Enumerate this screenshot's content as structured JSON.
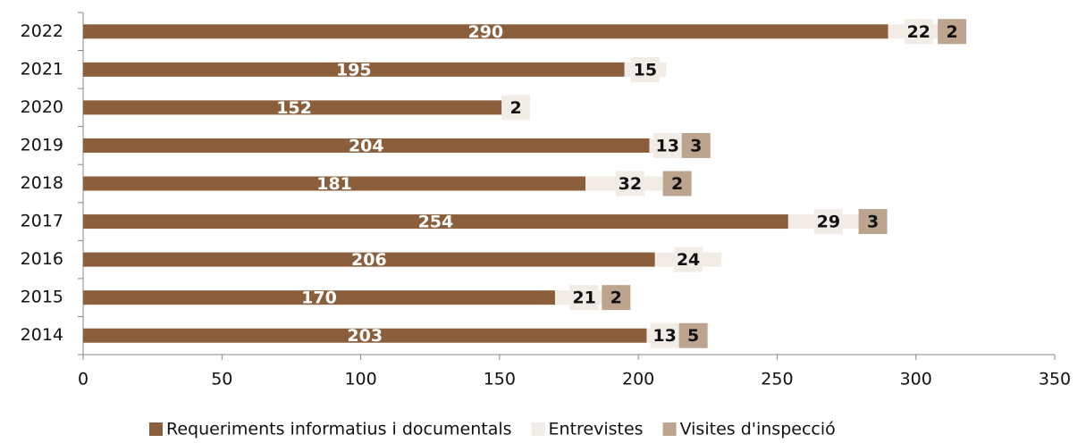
{
  "chart_data": {
    "type": "stacked-bar-horizontal",
    "categories": [
      "2022",
      "2021",
      "2020",
      "2019",
      "2018",
      "2017",
      "2016",
      "2015",
      "2014"
    ],
    "series": [
      {
        "name": "Requeriments informatius i documentals",
        "color": "#8b5e3c",
        "values": [
          290,
          195,
          152,
          204,
          181,
          254,
          206,
          170,
          203
        ]
      },
      {
        "name": "Entrevistes",
        "color": "#f2ece7",
        "values": [
          22,
          15,
          2,
          13,
          32,
          29,
          24,
          21,
          13
        ]
      },
      {
        "name": "Visites d'inspecció",
        "color": "#bda48e",
        "values": [
          2,
          null,
          null,
          3,
          2,
          3,
          null,
          2,
          5
        ]
      }
    ],
    "xlim": [
      0,
      350
    ],
    "xticks": [
      0,
      50,
      100,
      150,
      200,
      250,
      300,
      350
    ],
    "legend": "bottom"
  }
}
